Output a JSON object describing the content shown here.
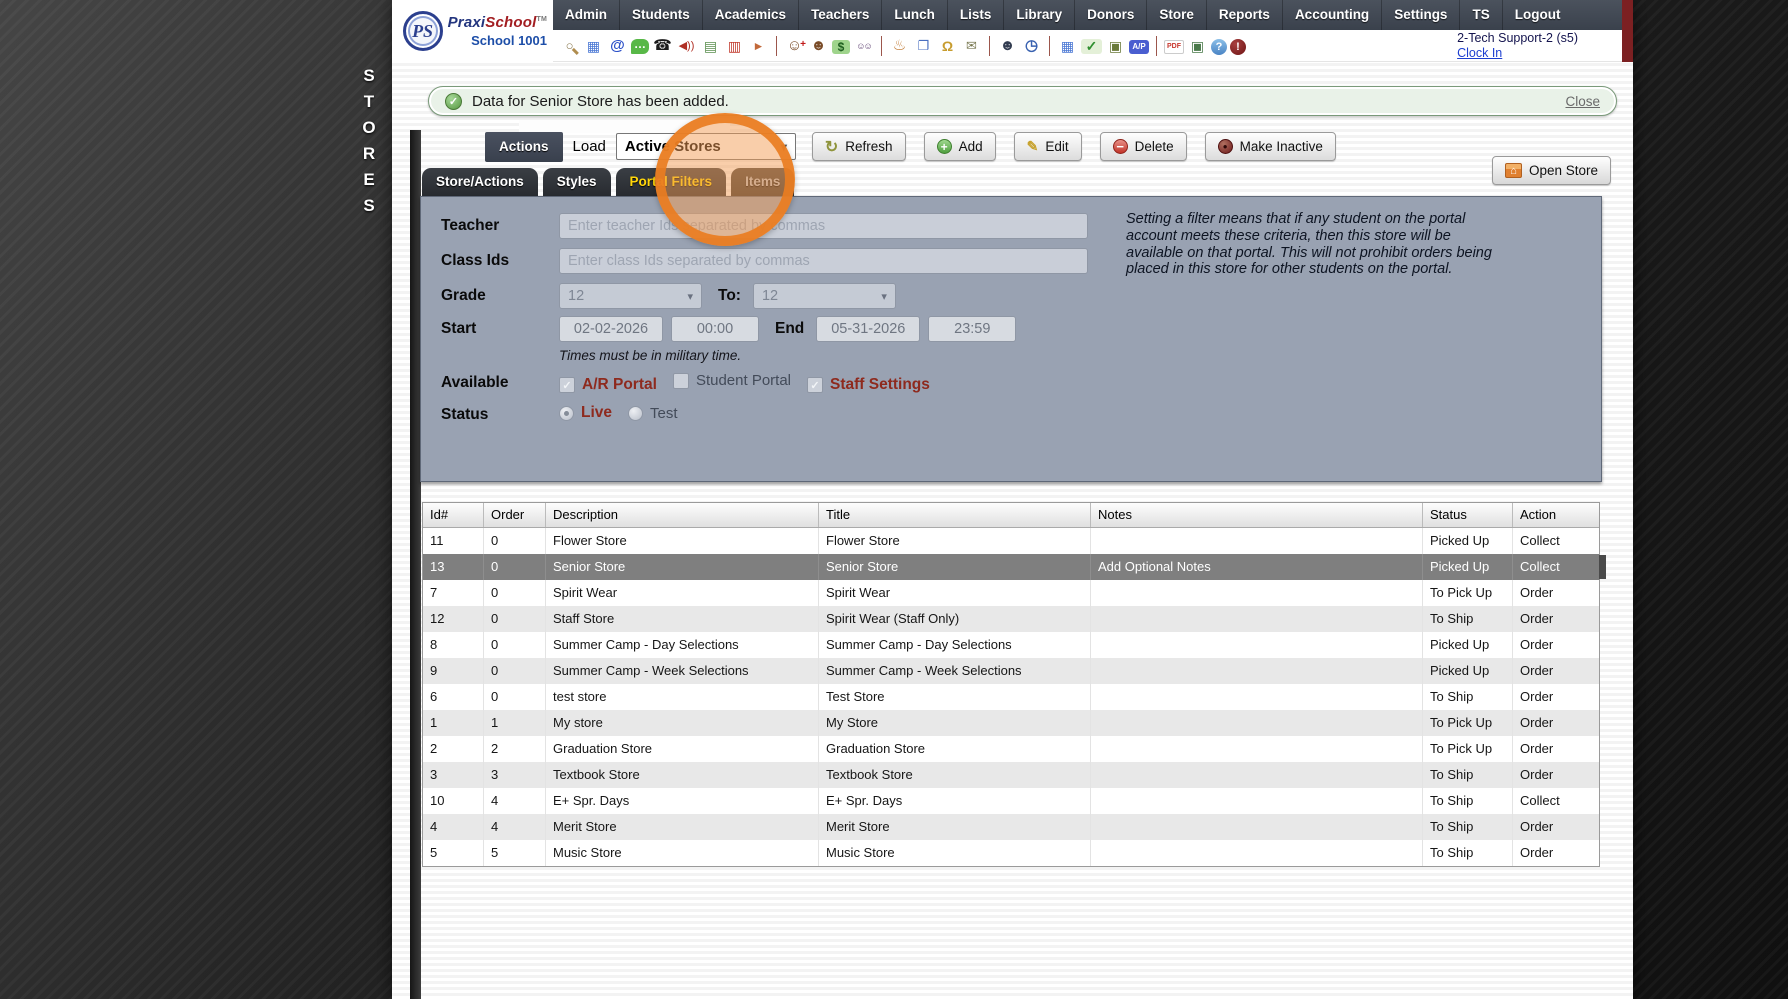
{
  "brand": {
    "monogram": "PS",
    "name_part1": "Praxi",
    "name_part2": "School",
    "tm": "TM",
    "school_label": "School 1001"
  },
  "nav": {
    "items": [
      "Admin",
      "Students",
      "Academics",
      "Teachers",
      "Lunch",
      "Lists",
      "Library",
      "Donors",
      "Store",
      "Reports",
      "Accounting",
      "Settings",
      "TS",
      "Logout"
    ]
  },
  "toolbar": {
    "user": "2-Tech Support-2 (s5)",
    "clock_in": "Clock In",
    "icons": [
      {
        "name": "search-icon",
        "glyph": "○"
      },
      {
        "name": "calendar-grid-icon",
        "glyph": "▦"
      },
      {
        "name": "email-at-icon",
        "glyph": "@"
      },
      {
        "name": "chat-icon",
        "glyph": "…"
      },
      {
        "name": "phone-icon",
        "glyph": "☎"
      },
      {
        "name": "speaker-icon",
        "glyph": "◀))"
      },
      {
        "name": "schedule-icon",
        "glyph": "▤"
      },
      {
        "name": "calendar-date-icon",
        "glyph": "▥"
      },
      {
        "name": "megaphone-icon",
        "glyph": "►"
      },
      {
        "divider": true
      },
      {
        "name": "add-student-icon",
        "glyph": "☺"
      },
      {
        "name": "student-icon",
        "glyph": "☻"
      },
      {
        "name": "money-icon",
        "glyph": "$"
      },
      {
        "name": "family-icon",
        "glyph": "☺☺"
      },
      {
        "divider": true
      },
      {
        "name": "lunch-icon",
        "glyph": "♨"
      },
      {
        "name": "binder-icon",
        "glyph": "❐"
      },
      {
        "name": "bell-icon",
        "glyph": "Ω"
      },
      {
        "name": "send-mail-icon",
        "glyph": "✉"
      },
      {
        "divider": true
      },
      {
        "name": "staff-icon",
        "glyph": "☻"
      },
      {
        "name": "alarm-icon",
        "glyph": "◷"
      },
      {
        "divider": true
      },
      {
        "name": "table-icon",
        "glyph": "▦"
      },
      {
        "name": "check-icon",
        "glyph": "✓"
      },
      {
        "name": "printer-deposit-icon",
        "glyph": "▣"
      },
      {
        "name": "ap-badge-icon",
        "glyph": "A/P"
      },
      {
        "divider": true
      },
      {
        "name": "pdf-icon",
        "glyph": "PDF"
      },
      {
        "name": "printer-icon",
        "glyph": "▣"
      },
      {
        "name": "help-icon",
        "glyph": "?"
      },
      {
        "name": "alert-icon",
        "glyph": "!"
      }
    ]
  },
  "sidebar": {
    "vertical_label": "STORES"
  },
  "banner": {
    "message": "Data for Senior Store has been added.",
    "close_label": "Close"
  },
  "actions": {
    "title": "Actions",
    "load_label": "Load",
    "load_value": "Active Stores",
    "buttons": [
      {
        "label": "Refresh",
        "icon": "refresh-icon",
        "glyph": "↻"
      },
      {
        "label": "Add",
        "icon": "add-icon",
        "glyph": "+"
      },
      {
        "label": "Edit",
        "icon": "edit-icon",
        "glyph": "✎"
      },
      {
        "label": "Delete",
        "icon": "delete-icon",
        "glyph": "−"
      },
      {
        "label": "Make Inactive",
        "icon": "inactive-icon",
        "glyph": "●"
      }
    ],
    "open_store_label": "Open Store",
    "open_store_glyph": "⌂"
  },
  "tabs": [
    {
      "label": "Store/Actions",
      "state": "normal"
    },
    {
      "label": "Styles",
      "state": "normal"
    },
    {
      "label": "Portal Filters",
      "state": "active"
    },
    {
      "label": "Items",
      "state": "muted"
    }
  ],
  "filters": {
    "teacher_label": "Teacher",
    "teacher_placeholder": "Enter teacher Ids separated by commas",
    "class_label": "Class Ids",
    "class_placeholder": "Enter class Ids separated by commas",
    "grade_label": "Grade",
    "grade_from": "12",
    "to_label": "To:",
    "grade_to": "12",
    "start_label": "Start",
    "start_date": "02-02-2026",
    "start_time": "00:00",
    "end_label": "End",
    "end_date": "05-31-2026",
    "end_time": "23:59",
    "time_note": "Times must be in military time.",
    "available_label": "Available",
    "available_options": [
      {
        "label": "A/R Portal",
        "checked": true
      },
      {
        "label": "Student Portal",
        "checked": false
      },
      {
        "label": "Staff Settings",
        "checked": true
      }
    ],
    "status_label": "Status",
    "status_options": [
      {
        "label": "Live",
        "selected": true
      },
      {
        "label": "Test",
        "selected": false
      }
    ],
    "help_text": "Setting a filter means that if any student on the portal account meets these criteria, then this store will be available on that portal. This will not prohibit orders being placed in this store for other students on the portal."
  },
  "table": {
    "columns": [
      "Id#",
      "Order",
      "Description",
      "Title",
      "Notes",
      "Status",
      "Action"
    ],
    "rows": [
      {
        "id": "11",
        "order": "0",
        "description": "Flower Store",
        "title": "Flower Store",
        "notes": "",
        "status": "Picked Up",
        "action": "Collect",
        "selected": false
      },
      {
        "id": "13",
        "order": "0",
        "description": "Senior Store",
        "title": "Senior Store",
        "notes": "Add Optional Notes",
        "status": "Picked Up",
        "action": "Collect",
        "selected": true
      },
      {
        "id": "7",
        "order": "0",
        "description": "Spirit Wear",
        "title": "Spirit Wear",
        "notes": "",
        "status": "To Pick Up",
        "action": "Order",
        "selected": false
      },
      {
        "id": "12",
        "order": "0",
        "description": "Staff Store",
        "title": "Spirit Wear (Staff Only)",
        "notes": "",
        "status": "To Ship",
        "action": "Order",
        "selected": false
      },
      {
        "id": "8",
        "order": "0",
        "description": "Summer Camp - Day Selections",
        "title": "Summer Camp - Day Selections",
        "notes": "",
        "status": "Picked Up",
        "action": "Order",
        "selected": false
      },
      {
        "id": "9",
        "order": "0",
        "description": "Summer Camp - Week Selections",
        "title": "Summer Camp - Week Selections",
        "notes": "",
        "status": "Picked Up",
        "action": "Order",
        "selected": false
      },
      {
        "id": "6",
        "order": "0",
        "description": "test store",
        "title": "Test Store",
        "notes": "",
        "status": "To Ship",
        "action": "Order",
        "selected": false
      },
      {
        "id": "1",
        "order": "1",
        "description": "My store",
        "title": "My Store",
        "notes": "",
        "status": "To Pick Up",
        "action": "Order",
        "selected": false
      },
      {
        "id": "2",
        "order": "2",
        "description": "Graduation Store",
        "title": "Graduation Store",
        "notes": "",
        "status": "To Pick Up",
        "action": "Order",
        "selected": false
      },
      {
        "id": "3",
        "order": "3",
        "description": "Textbook Store",
        "title": "Textbook Store",
        "notes": "",
        "status": "To Ship",
        "action": "Order",
        "selected": false
      },
      {
        "id": "10",
        "order": "4",
        "description": "E+ Spr. Days",
        "title": "E+ Spr. Days",
        "notes": "",
        "status": "To Ship",
        "action": "Collect",
        "selected": false
      },
      {
        "id": "4",
        "order": "4",
        "description": "Merit Store",
        "title": "Merit Store",
        "notes": "",
        "status": "To Ship",
        "action": "Order",
        "selected": false
      },
      {
        "id": "5",
        "order": "5",
        "description": "Music Store",
        "title": "Music Store",
        "notes": "",
        "status": "To Ship",
        "action": "Order",
        "selected": false
      }
    ]
  },
  "annotation": {
    "shape": "circle",
    "target": "Items tab",
    "color": "#ED7D21"
  },
  "colors": {
    "nav_bg": "#3e4550",
    "banner_bg": "#e9f2e8",
    "panel_bg": "#99a2b2",
    "selected_row": "#7f7f7f",
    "active_tab_text": "#ffd60a",
    "label_red": "#8e2a1e",
    "maroon_strip": "#7c2022",
    "highlight_orange": "#ED7D21"
  }
}
